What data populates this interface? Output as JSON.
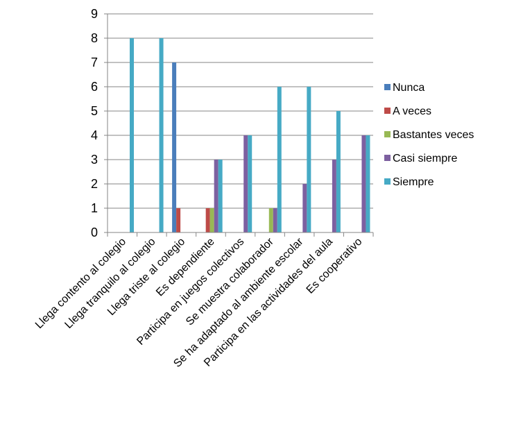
{
  "chart_data": {
    "type": "bar",
    "categories": [
      "Llega contento al colegio",
      "Llega tranquilo al colegio",
      "Llega triste al colegio",
      "Es dependiente",
      "Participa en juegos colectivos",
      "Se muestra colaborador",
      "Se ha adaptado al ambiente escolar",
      "Participa en las actividades del aula",
      "Es cooperativo"
    ],
    "series": [
      {
        "name": "Nunca",
        "color": "#4a7ebb",
        "values": [
          0,
          0,
          7,
          0,
          0,
          0,
          0,
          0,
          0
        ]
      },
      {
        "name": "A veces",
        "color": "#be4b48",
        "values": [
          0,
          0,
          1,
          1,
          0,
          0,
          0,
          0,
          0
        ]
      },
      {
        "name": "Bastantes veces",
        "color": "#98b954",
        "values": [
          0,
          0,
          0,
          1,
          0,
          1,
          0,
          0,
          0
        ]
      },
      {
        "name": "Casi siempre",
        "color": "#7d60a0",
        "values": [
          0,
          0,
          0,
          3,
          4,
          1,
          2,
          3,
          4
        ]
      },
      {
        "name": "Siempre",
        "color": "#46aac5",
        "values": [
          8,
          8,
          0,
          3,
          4,
          6,
          6,
          5,
          4
        ]
      }
    ],
    "ylim": [
      0,
      9
    ],
    "yticks": [
      "0",
      "1",
      "2",
      "3",
      "4",
      "5",
      "6",
      "7",
      "8",
      "9"
    ],
    "grid": true,
    "legend_position": "right",
    "title": "",
    "xlabel": "",
    "ylabel": ""
  }
}
